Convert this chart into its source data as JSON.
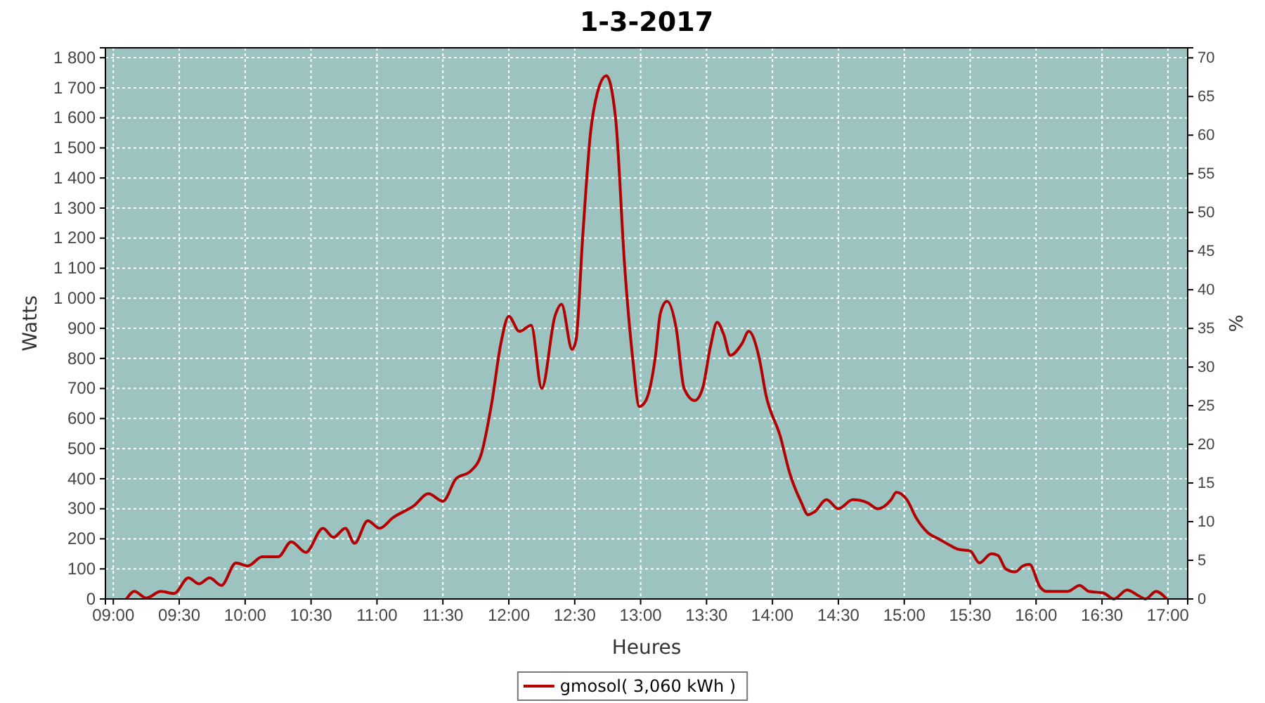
{
  "chart_data": {
    "type": "line",
    "title": "1-3-2017",
    "xlabel": "Heures",
    "ylabel": "Watts",
    "y2label": "%",
    "xlim": [
      8.94,
      17.15
    ],
    "xticks": [
      {
        "value": 9,
        "label": "09:00"
      },
      {
        "value": 9.5,
        "label": "09:30"
      },
      {
        "value": 10,
        "label": "10:00"
      },
      {
        "value": 10.5,
        "label": "10:30"
      },
      {
        "value": 11,
        "label": "11:00"
      },
      {
        "value": 11.5,
        "label": "11:30"
      },
      {
        "value": 12,
        "label": "12:00"
      },
      {
        "value": 12.5,
        "label": "12:30"
      },
      {
        "value": 13,
        "label": "13:00"
      },
      {
        "value": 13.5,
        "label": "13:30"
      },
      {
        "value": 14,
        "label": "14:00"
      },
      {
        "value": 14.5,
        "label": "14:30"
      },
      {
        "value": 15,
        "label": "15:00"
      },
      {
        "value": 15.5,
        "label": "15:30"
      },
      {
        "value": 16,
        "label": "16:00"
      },
      {
        "value": 16.5,
        "label": "16:30"
      },
      {
        "value": 17,
        "label": "17:00"
      }
    ],
    "ylim": [
      0,
      1833
    ],
    "yticks": [
      0,
      100,
      200,
      300,
      400,
      500,
      600,
      700,
      800,
      900,
      {
        "value": 1000,
        "label": "1 000"
      },
      {
        "value": 1100,
        "label": "1 100"
      },
      {
        "value": 1200,
        "label": "1 200"
      },
      {
        "value": 1300,
        "label": "1 300"
      },
      {
        "value": 1400,
        "label": "1 400"
      },
      {
        "value": 1500,
        "label": "1 500"
      },
      {
        "value": 1600,
        "label": "1 600"
      },
      {
        "value": 1700,
        "label": "1 700"
      },
      {
        "value": 1800,
        "label": "1 800"
      }
    ],
    "y2lim": [
      0,
      71.3
    ],
    "y2ticks": [
      0,
      5,
      10,
      15,
      20,
      25,
      30,
      35,
      40,
      45,
      50,
      55,
      60,
      65,
      70
    ],
    "grid": true,
    "legend": "bottom",
    "marker": "none",
    "line_style": "solid",
    "series": [
      {
        "name": "gmosol( 3,060 kWh )",
        "color": "#b40000",
        "x": [
          9.1,
          9.16,
          9.25,
          9.36,
          9.46,
          9.57,
          9.65,
          9.73,
          9.82,
          9.93,
          10.02,
          10.13,
          10.25,
          10.35,
          10.46,
          10.59,
          10.67,
          10.76,
          10.83,
          10.93,
          11.02,
          11.12,
          11.28,
          11.39,
          11.5,
          11.6,
          11.71,
          11.79,
          11.87,
          11.94,
          12.0,
          12.08,
          12.17,
          12.25,
          12.35,
          12.4,
          12.48,
          12.51,
          12.56,
          12.62,
          12.67,
          12.74,
          12.81,
          12.88,
          12.94,
          12.99,
          13.04,
          13.11,
          13.15,
          13.2,
          13.27,
          13.33,
          13.41,
          13.47,
          13.53,
          13.58,
          13.63,
          13.68,
          13.77,
          13.82,
          13.9,
          13.95,
          14.06,
          14.13,
          14.22,
          14.27,
          14.32,
          14.41,
          14.5,
          14.61,
          14.72,
          14.8,
          14.9,
          14.94,
          15.02,
          15.09,
          15.18,
          15.26,
          15.34,
          15.41,
          15.5,
          15.57,
          15.66,
          15.71,
          15.77,
          15.84,
          15.9,
          15.95,
          16.03,
          16.08,
          16.24,
          16.33,
          16.4,
          16.51,
          16.59,
          16.69,
          16.78,
          16.83,
          16.91,
          16.99
        ],
        "values": [
          0,
          25,
          3,
          25,
          18,
          70,
          50,
          70,
          45,
          120,
          110,
          140,
          140,
          190,
          155,
          235,
          205,
          235,
          185,
          260,
          235,
          270,
          310,
          350,
          325,
          400,
          425,
          480,
          650,
          850,
          940,
          890,
          910,
          700,
          940,
          980,
          830,
          860,
          1200,
          1550,
          1680,
          1740,
          1600,
          1100,
          800,
          640,
          660,
          800,
          950,
          990,
          900,
          700,
          660,
          700,
          840,
          920,
          880,
          810,
          850,
          890,
          800,
          680,
          540,
          420,
          320,
          280,
          290,
          330,
          300,
          330,
          320,
          300,
          330,
          355,
          330,
          270,
          220,
          200,
          180,
          165,
          160,
          120,
          150,
          145,
          100,
          90,
          110,
          115,
          40,
          25,
          25,
          45,
          25,
          20,
          0,
          30,
          10,
          0,
          25,
          0
        ]
      }
    ]
  }
}
